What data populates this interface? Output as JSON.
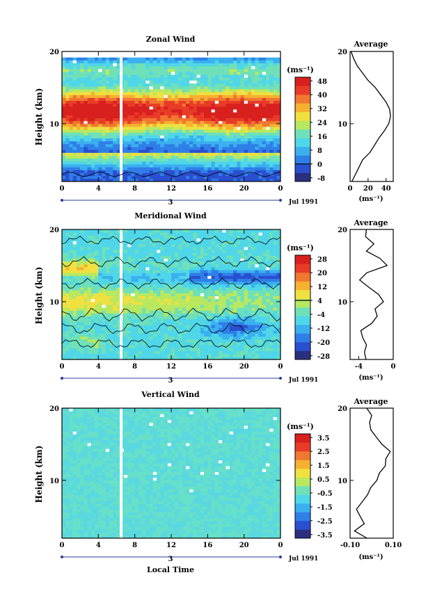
{
  "colors": {
    "scale": [
      "#2b2f80",
      "#2a4fd0",
      "#2f7fe8",
      "#3ab0f0",
      "#4fd6e8",
      "#6fe0b8",
      "#b8e860",
      "#f0e040",
      "#f6b030",
      "#f07830",
      "#e83c28",
      "#d8201e"
    ],
    "contour": "#000000",
    "gap": "#ffffff"
  },
  "chart_data": [
    {
      "type": "heatmap",
      "title": "Zonal Wind",
      "ylabel": "Height (km)",
      "xlabel": "",
      "x_ticks": [
        "0",
        "4",
        "8",
        "12",
        "16",
        "20",
        "0"
      ],
      "y_ticks": [
        "20",
        "10"
      ],
      "xlim": [
        0,
        24
      ],
      "ylim": [
        2,
        20
      ],
      "date_day": "3",
      "date_label": "Jul 1991",
      "colorbar": {
        "unit_label": "(ms⁻¹)",
        "ticks": [
          "48",
          "40",
          "32",
          "24",
          "16",
          "8",
          "0",
          "-8"
        ],
        "levels": [
          -8,
          0,
          8,
          16,
          24,
          32,
          40,
          48
        ]
      },
      "avg_title": "Average",
      "avg_unit": "(ms⁻¹)",
      "avg_x_ticks": [
        "0",
        "20",
        "40"
      ],
      "avg_xlim": [
        0,
        48
      ],
      "avg_profile": {
        "height_km": [
          2,
          3,
          4,
          5,
          6,
          7,
          8,
          9,
          10,
          11,
          12,
          13,
          14,
          15,
          16,
          17,
          18,
          19,
          20
        ],
        "value": [
          2,
          6,
          10,
          14,
          22,
          27,
          32,
          38,
          43,
          45,
          44,
          40,
          34,
          28,
          20,
          14,
          8,
          4,
          1
        ]
      }
    },
    {
      "type": "heatmap",
      "title": "Meridional Wind",
      "ylabel": "Height (km)",
      "xlabel": "",
      "x_ticks": [
        "0",
        "4",
        "8",
        "12",
        "16",
        "20",
        "0"
      ],
      "y_ticks": [
        "20",
        "10"
      ],
      "xlim": [
        0,
        24
      ],
      "ylim": [
        2,
        20
      ],
      "date_day": "3",
      "date_label": "Jul 1991",
      "colorbar": {
        "unit_label": "(ms⁻¹)",
        "ticks": [
          "28",
          "20",
          "12",
          "4",
          "-4",
          "-12",
          "-20",
          "-28"
        ],
        "levels": [
          -28,
          -20,
          -12,
          -4,
          4,
          12,
          20,
          28
        ]
      },
      "avg_title": "Average",
      "avg_unit": "(ms⁻¹)",
      "avg_x_ticks": [
        "-4",
        "0"
      ],
      "avg_xlim": [
        -5,
        0
      ],
      "avg_profile": {
        "height_km": [
          2,
          3,
          4,
          5,
          6,
          7,
          8,
          9,
          10,
          11,
          12,
          13,
          14,
          15,
          16,
          17,
          18,
          19,
          20
        ],
        "value": [
          -3.2,
          -3.4,
          -3.0,
          -3.5,
          -3.8,
          -2.5,
          -1.8,
          -2.2,
          -1.2,
          -1.8,
          -2.8,
          -4.0,
          -3.0,
          -0.8,
          -1.5,
          -3.0,
          -2.2,
          -3.2,
          -3.0
        ]
      }
    },
    {
      "type": "heatmap",
      "title": "Vertical Wind",
      "ylabel": "Height (km)",
      "xlabel": "Local Time",
      "x_ticks": [
        "0",
        "4",
        "8",
        "12",
        "16",
        "20",
        "0"
      ],
      "y_ticks": [
        "20",
        "10"
      ],
      "xlim": [
        0,
        24
      ],
      "ylim": [
        2,
        20
      ],
      "date_day": "3",
      "date_label": "Jul 1991",
      "colorbar": {
        "unit_label": "(ms⁻¹)",
        "ticks": [
          "3.5",
          "2.5",
          "1.5",
          "0.5",
          "-0.5",
          "-1.5",
          "-2.5",
          "-3.5"
        ],
        "levels": [
          -3.5,
          -2.5,
          -1.5,
          -0.5,
          0.5,
          1.5,
          2.5,
          3.5
        ]
      },
      "avg_title": "Average",
      "avg_unit": "(ms⁻¹)",
      "avg_x_ticks": [
        "-0.10",
        "0.10"
      ],
      "avg_xlim": [
        -0.1,
        0.1
      ],
      "avg_profile": {
        "height_km": [
          2,
          3,
          4,
          5,
          6,
          7,
          8,
          9,
          10,
          11,
          12,
          13,
          14,
          15,
          16,
          17,
          18,
          19,
          20
        ],
        "value": [
          -0.02,
          -0.08,
          -0.03,
          -0.05,
          -0.07,
          -0.04,
          -0.02,
          0.0,
          0.02,
          0.04,
          0.06,
          0.07,
          0.09,
          0.05,
          0.02,
          0.0,
          -0.01,
          0.0,
          -0.02
        ]
      }
    }
  ]
}
